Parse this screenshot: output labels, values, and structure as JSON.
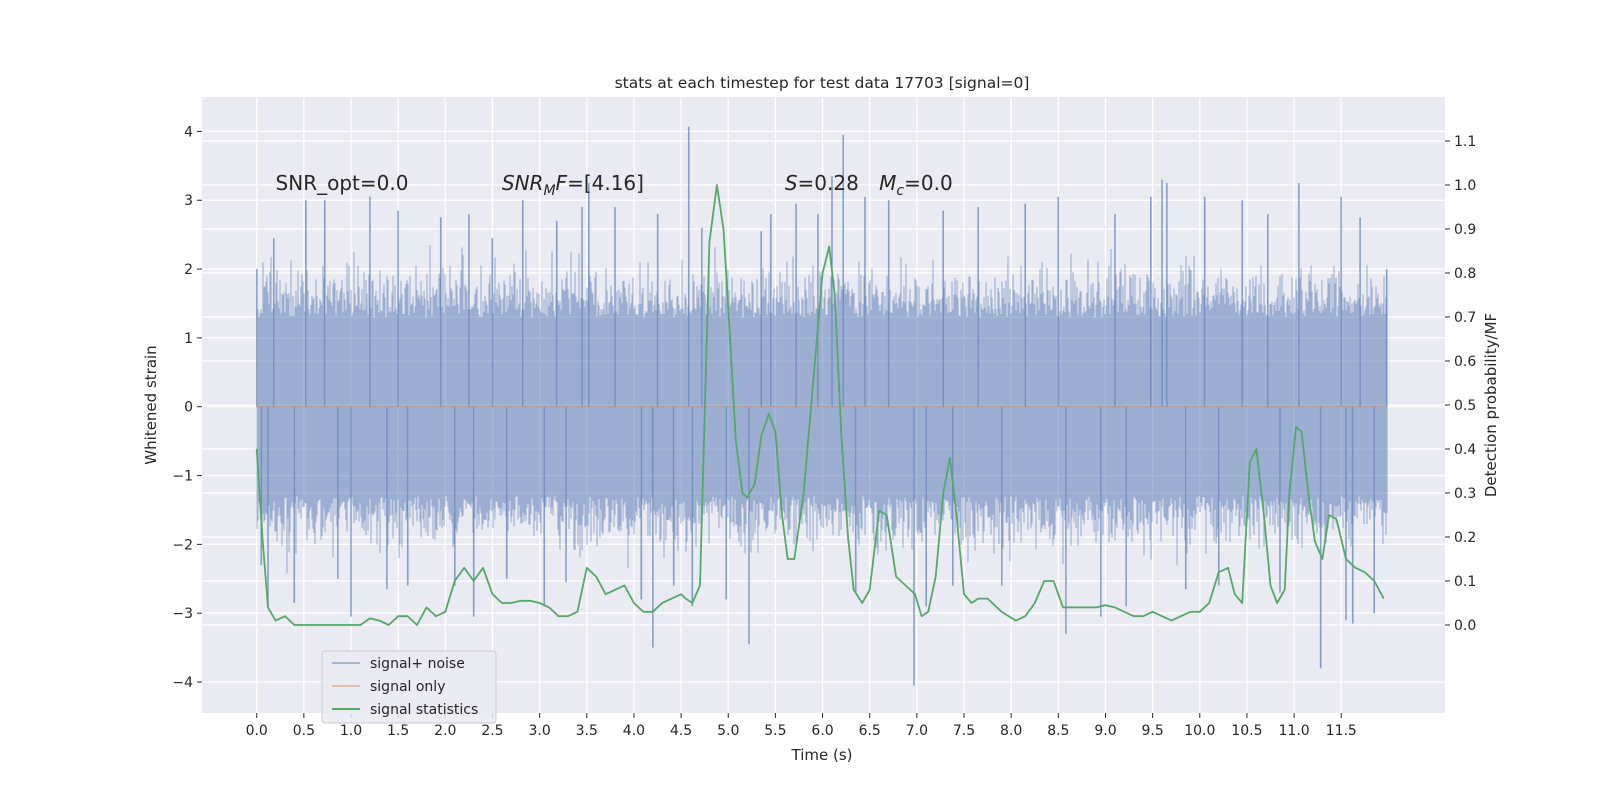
{
  "chart_data": {
    "type": "line",
    "title": "stats at each timestep for test data 17703 [signal=0]",
    "xlabel": "Time (s)",
    "ylabel_left": "Whitened strain",
    "ylabel_right": "Detection probability/MF",
    "xlim": [
      -0.58,
      12.6
    ],
    "ylim_left": [
      -4.45,
      4.5
    ],
    "ylim_right": [
      -0.2,
      1.2
    ],
    "x_ticks": [
      0.0,
      0.5,
      1.0,
      1.5,
      2.0,
      2.5,
      3.0,
      3.5,
      4.0,
      4.5,
      5.0,
      5.5,
      6.0,
      6.5,
      7.0,
      7.5,
      8.0,
      8.5,
      9.0,
      9.5,
      10.0,
      10.5,
      11.0,
      11.5
    ],
    "x_tick_labels": [
      "0.0",
      "0.5",
      "1.0",
      "1.5",
      "2.0",
      "2.5",
      "3.0",
      "3.5",
      "4.0",
      "4.5",
      "5.0",
      "5.5",
      "6.0",
      "6.5",
      "7.0",
      "7.5",
      "8.0",
      "8.5",
      "9.0",
      "9.5",
      "10.0",
      "10.5",
      "11.0",
      "11.5"
    ],
    "y_left_ticks": [
      4,
      3,
      2,
      1,
      0,
      -1,
      -2,
      -3,
      -4
    ],
    "y_left_tick_labels": [
      "4",
      "3",
      "2",
      "1",
      "0",
      "−1",
      "−2",
      "−3",
      "−4"
    ],
    "y_right_ticks": [
      1.1,
      1.0,
      0.9,
      0.8,
      0.7,
      0.6,
      0.5,
      0.4,
      0.3,
      0.2,
      0.1,
      0.0
    ],
    "y_right_tick_labels": [
      "1.1",
      "1.0",
      "0.9",
      "0.8",
      "0.7",
      "0.6",
      "0.5",
      "0.4",
      "0.3",
      "0.2",
      "0.1",
      "0.0"
    ],
    "grid": true,
    "legend_position": "lower-left",
    "annotations": [
      {
        "id": "snr-opt",
        "text": "SNR_opt=0.0",
        "x": 0.2,
        "y": 3.25
      },
      {
        "id": "snr-mf",
        "text": "SNR_MF=[4.16]",
        "x": 2.6,
        "y": 3.25
      },
      {
        "id": "s-stat",
        "text": "S=0.28",
        "x": 5.6,
        "y": 3.25
      },
      {
        "id": "mc",
        "text": "M_c=0.0",
        "x": 6.6,
        "y": 3.25
      }
    ],
    "series": [
      {
        "name": "signal+ noise",
        "axis": "left",
        "color": "#4c72b0",
        "opacity": 0.5,
        "x_range": [
          0.0,
          11.98
        ],
        "band_typical": [
          -1.9,
          1.8
        ],
        "spikes": [
          {
            "x": 0.0,
            "y": 2.0
          },
          {
            "x": 0.05,
            "y": -2.3
          },
          {
            "x": 0.12,
            "y": -2.9
          },
          {
            "x": 0.18,
            "y": 2.45
          },
          {
            "x": 0.4,
            "y": -2.85
          },
          {
            "x": 0.52,
            "y": 3.0
          },
          {
            "x": 0.72,
            "y": 3.0
          },
          {
            "x": 0.86,
            "y": -2.5
          },
          {
            "x": 1.0,
            "y": -3.05
          },
          {
            "x": 1.2,
            "y": 3.05
          },
          {
            "x": 1.38,
            "y": -2.65
          },
          {
            "x": 1.5,
            "y": 2.85
          },
          {
            "x": 1.6,
            "y": -2.6
          },
          {
            "x": 1.95,
            "y": 2.75
          },
          {
            "x": 2.1,
            "y": -2.6
          },
          {
            "x": 2.25,
            "y": 2.8
          },
          {
            "x": 2.3,
            "y": -3.05
          },
          {
            "x": 2.5,
            "y": 2.45
          },
          {
            "x": 2.65,
            "y": -2.5
          },
          {
            "x": 2.82,
            "y": 3.0
          },
          {
            "x": 3.05,
            "y": -2.9
          },
          {
            "x": 3.18,
            "y": 2.7
          },
          {
            "x": 3.28,
            "y": -2.55
          },
          {
            "x": 3.45,
            "y": 2.9
          },
          {
            "x": 3.52,
            "y": 3.25
          },
          {
            "x": 3.8,
            "y": 2.9
          },
          {
            "x": 4.08,
            "y": -2.8
          },
          {
            "x": 4.2,
            "y": -3.5
          },
          {
            "x": 4.25,
            "y": 2.8
          },
          {
            "x": 4.42,
            "y": -2.6
          },
          {
            "x": 4.58,
            "y": 4.07
          },
          {
            "x": 4.62,
            "y": -2.9
          },
          {
            "x": 4.72,
            "y": 2.6
          },
          {
            "x": 4.98,
            "y": -2.8
          },
          {
            "x": 5.22,
            "y": -3.45
          },
          {
            "x": 5.35,
            "y": 2.55
          },
          {
            "x": 5.45,
            "y": 2.8
          },
          {
            "x": 5.72,
            "y": 2.95
          },
          {
            "x": 5.95,
            "y": 2.8
          },
          {
            "x": 6.1,
            "y": 3.35
          },
          {
            "x": 6.22,
            "y": 3.95
          },
          {
            "x": 6.35,
            "y": -2.7
          },
          {
            "x": 6.45,
            "y": 3.05
          },
          {
            "x": 6.7,
            "y": 3.0
          },
          {
            "x": 6.97,
            "y": -4.05
          },
          {
            "x": 7.1,
            "y": -2.9
          },
          {
            "x": 7.28,
            "y": 2.85
          },
          {
            "x": 7.38,
            "y": -2.6
          },
          {
            "x": 7.65,
            "y": 2.9
          },
          {
            "x": 7.9,
            "y": -2.6
          },
          {
            "x": 8.15,
            "y": 2.95
          },
          {
            "x": 8.5,
            "y": 3.05
          },
          {
            "x": 8.58,
            "y": -3.3
          },
          {
            "x": 8.95,
            "y": -3.05
          },
          {
            "x": 9.1,
            "y": 2.8
          },
          {
            "x": 9.22,
            "y": -2.9
          },
          {
            "x": 9.48,
            "y": 3.05
          },
          {
            "x": 9.6,
            "y": 3.3
          },
          {
            "x": 9.65,
            "y": 3.25
          },
          {
            "x": 9.85,
            "y": -2.65
          },
          {
            "x": 10.05,
            "y": 3.05
          },
          {
            "x": 10.2,
            "y": -2.6
          },
          {
            "x": 10.45,
            "y": 3.0
          },
          {
            "x": 10.72,
            "y": 2.8
          },
          {
            "x": 10.85,
            "y": -2.7
          },
          {
            "x": 11.05,
            "y": 3.25
          },
          {
            "x": 11.28,
            "y": -3.8
          },
          {
            "x": 11.5,
            "y": 3.05
          },
          {
            "x": 11.55,
            "y": -3.1
          },
          {
            "x": 11.62,
            "y": -3.15
          },
          {
            "x": 11.7,
            "y": 2.75
          },
          {
            "x": 11.85,
            "y": -3.0
          },
          {
            "x": 11.98,
            "y": 2.0
          }
        ]
      },
      {
        "name": "signal only",
        "axis": "left",
        "color": "#dd8452",
        "x": [
          0.0,
          11.98
        ],
        "y": [
          0.0,
          0.0
        ]
      },
      {
        "name": "signal statistics",
        "axis": "right",
        "color": "#55a868",
        "x": [
          0.0,
          0.06,
          0.12,
          0.2,
          0.3,
          0.4,
          0.5,
          0.6,
          0.8,
          1.0,
          1.1,
          1.2,
          1.3,
          1.4,
          1.5,
          1.6,
          1.7,
          1.8,
          1.9,
          2.0,
          2.1,
          2.2,
          2.3,
          2.4,
          2.5,
          2.6,
          2.7,
          2.8,
          2.9,
          3.0,
          3.1,
          3.2,
          3.3,
          3.4,
          3.5,
          3.6,
          3.7,
          3.8,
          3.9,
          4.0,
          4.1,
          4.2,
          4.3,
          4.4,
          4.5,
          4.55,
          4.62,
          4.7,
          4.8,
          4.88,
          4.95,
          5.02,
          5.08,
          5.15,
          5.2,
          5.28,
          5.35,
          5.43,
          5.5,
          5.57,
          5.63,
          5.7,
          5.8,
          5.9,
          6.0,
          6.07,
          6.13,
          6.2,
          6.27,
          6.33,
          6.42,
          6.5,
          6.6,
          6.68,
          6.78,
          6.88,
          6.98,
          7.05,
          7.12,
          7.2,
          7.28,
          7.35,
          7.42,
          7.5,
          7.58,
          7.65,
          7.75,
          7.9,
          8.05,
          8.15,
          8.25,
          8.35,
          8.45,
          8.55,
          8.7,
          8.9,
          9.0,
          9.1,
          9.2,
          9.3,
          9.4,
          9.5,
          9.6,
          9.7,
          9.8,
          9.9,
          10.0,
          10.1,
          10.2,
          10.3,
          10.37,
          10.45,
          10.53,
          10.6,
          10.68,
          10.75,
          10.82,
          10.9,
          10.95,
          11.02,
          11.08,
          11.15,
          11.22,
          11.3,
          11.37,
          11.45,
          11.55,
          11.65,
          11.75,
          11.85,
          11.95
        ],
        "y": [
          0.4,
          0.2,
          0.04,
          0.01,
          0.02,
          0.0,
          0.0,
          0.0,
          0.0,
          0.0,
          0.0,
          0.015,
          0.01,
          0.0,
          0.02,
          0.02,
          0.0,
          0.04,
          0.02,
          0.03,
          0.1,
          0.13,
          0.1,
          0.13,
          0.07,
          0.05,
          0.05,
          0.055,
          0.055,
          0.05,
          0.04,
          0.02,
          0.02,
          0.03,
          0.13,
          0.11,
          0.07,
          0.08,
          0.09,
          0.05,
          0.03,
          0.03,
          0.05,
          0.06,
          0.07,
          0.06,
          0.05,
          0.09,
          0.87,
          1.0,
          0.9,
          0.65,
          0.42,
          0.3,
          0.29,
          0.32,
          0.43,
          0.48,
          0.44,
          0.25,
          0.15,
          0.15,
          0.3,
          0.55,
          0.8,
          0.86,
          0.75,
          0.43,
          0.2,
          0.08,
          0.05,
          0.08,
          0.26,
          0.25,
          0.11,
          0.09,
          0.07,
          0.02,
          0.03,
          0.11,
          0.3,
          0.38,
          0.25,
          0.07,
          0.05,
          0.06,
          0.06,
          0.03,
          0.01,
          0.02,
          0.05,
          0.1,
          0.1,
          0.04,
          0.04,
          0.04,
          0.045,
          0.04,
          0.03,
          0.02,
          0.02,
          0.03,
          0.02,
          0.01,
          0.02,
          0.03,
          0.03,
          0.05,
          0.12,
          0.13,
          0.07,
          0.05,
          0.37,
          0.4,
          0.25,
          0.09,
          0.05,
          0.08,
          0.3,
          0.45,
          0.44,
          0.3,
          0.19,
          0.15,
          0.25,
          0.24,
          0.15,
          0.13,
          0.12,
          0.1,
          0.06
        ]
      }
    ]
  }
}
